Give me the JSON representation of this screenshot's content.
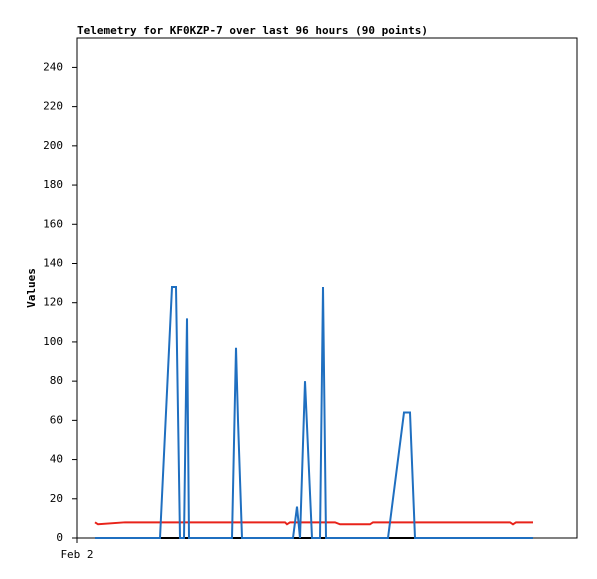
{
  "chart_data": {
    "type": "line",
    "title": "Telemetry for KF0KZP-7 over last 96 hours (90 points)",
    "y_label": "Values",
    "xlim": [
      0,
      100
    ],
    "xticks": [
      {
        "value": 0,
        "label": "Feb 2"
      }
    ],
    "ylim": [
      0,
      255
    ],
    "yticks": [
      0,
      20,
      40,
      60,
      80,
      100,
      120,
      140,
      160,
      180,
      200,
      220,
      240
    ],
    "x": [
      3.6,
      4.2,
      9.6,
      16.6,
      19,
      19.8,
      20.6,
      21.4,
      22,
      22.4,
      31,
      31.8,
      32.2,
      33,
      41.6,
      42,
      42.6,
      43.2,
      44,
      44.6,
      45.6,
      47,
      48.6,
      49.2,
      49.8,
      51.6,
      52.6,
      58.6,
      59.2,
      62.2,
      65.4,
      66.6,
      67.6,
      86.6,
      87.2,
      87.8,
      91.2
    ],
    "series": [
      {
        "color": "#000000",
        "values": [
          0,
          0,
          0,
          0,
          0,
          0,
          0,
          0,
          0,
          0,
          0,
          0,
          0,
          0,
          0,
          0,
          0,
          0,
          0,
          0,
          0,
          0,
          0,
          0,
          0,
          0,
          0,
          0,
          0,
          0,
          0,
          0,
          0,
          0,
          0,
          0,
          0
        ]
      },
      {
        "color": "#e8231a",
        "values": [
          8,
          7,
          8,
          8,
          8,
          8,
          8,
          8,
          8,
          8,
          8,
          8,
          8,
          8,
          8,
          7,
          8,
          8,
          8,
          8,
          8,
          8,
          8,
          8,
          8,
          8,
          7,
          7,
          8,
          8,
          8,
          8,
          8,
          8,
          7,
          8,
          8
        ]
      },
      {
        "color": "#1f6fc0",
        "values": [
          0,
          0,
          0,
          0,
          128,
          128,
          0,
          0,
          112,
          0,
          0,
          97,
          60,
          0,
          0,
          0,
          0,
          0,
          16,
          0,
          80,
          0,
          0,
          128,
          0,
          0,
          0,
          0,
          0,
          0,
          64,
          64,
          0,
          0,
          0,
          0,
          0
        ]
      }
    ]
  }
}
